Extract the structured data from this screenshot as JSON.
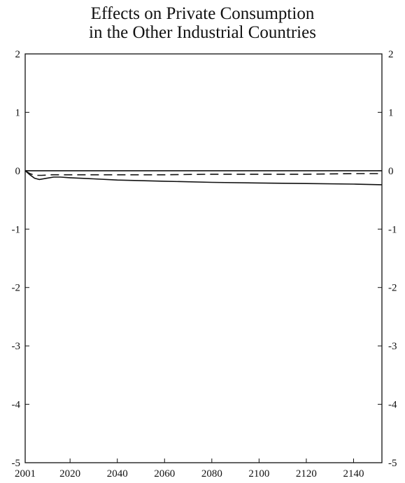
{
  "chart_data": {
    "type": "line",
    "title": [
      "Effects on Private Consumption",
      "in the Other Industrial Countries"
    ],
    "xlabel": "",
    "ylabel": "",
    "xlim": [
      2001,
      2152
    ],
    "ylim": [
      -5,
      2
    ],
    "x_ticks": [
      2001,
      2020,
      2040,
      2060,
      2080,
      2100,
      2120,
      2140
    ],
    "x_tick_labels": [
      "2001",
      "2020",
      "2040",
      "2060",
      "2080",
      "2100",
      "2120",
      "2140"
    ],
    "y_ticks": [
      2,
      1,
      0,
      -1,
      -2,
      -3,
      -4,
      -5
    ],
    "y_tick_labels": [
      "2",
      "1",
      "0",
      "-1",
      "-2",
      "-3",
      "-4",
      "-5"
    ],
    "grid": false,
    "legend": "none",
    "series": [
      {
        "style": "solid",
        "color": "#111111",
        "x": [
          2001,
          2003,
          2005,
          2007,
          2010,
          2013,
          2016,
          2020,
          2030,
          2040,
          2060,
          2080,
          2100,
          2120,
          2140,
          2152
        ],
        "y": [
          0,
          -0.07,
          -0.13,
          -0.15,
          -0.13,
          -0.11,
          -0.11,
          -0.12,
          -0.14,
          -0.16,
          -0.18,
          -0.2,
          -0.21,
          -0.22,
          -0.23,
          -0.24
        ]
      },
      {
        "style": "dashed",
        "color": "#111111",
        "x": [
          2001,
          2003,
          2005,
          2008,
          2012,
          2020,
          2040,
          2060,
          2080,
          2100,
          2120,
          2140,
          2152
        ],
        "y": [
          0,
          -0.05,
          -0.08,
          -0.08,
          -0.07,
          -0.07,
          -0.07,
          -0.07,
          -0.06,
          -0.06,
          -0.06,
          -0.05,
          -0.05
        ]
      },
      {
        "style": "solid",
        "color": "#111111",
        "x": [
          2001,
          2152
        ],
        "y": [
          0,
          0
        ]
      }
    ]
  }
}
